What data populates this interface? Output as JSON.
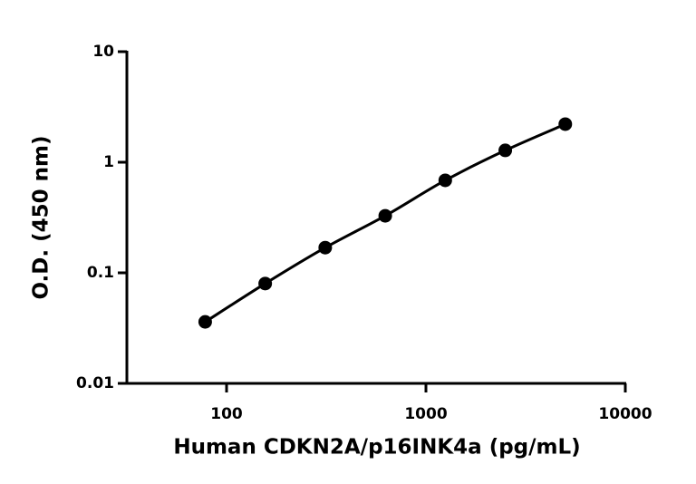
{
  "chart_data": {
    "type": "scatter",
    "log_x": true,
    "log_y": true,
    "x_label": "Human CDKN2A/p16INK4a (pg/mL)",
    "y_label": "O.D. (450 nm)",
    "x": [
      78.125,
      156.25,
      312.5,
      625,
      1250,
      2500,
      5000
    ],
    "values": [
      0.036,
      0.08,
      0.169,
      0.328,
      0.686,
      1.28,
      2.21
    ],
    "color": "#000000",
    "xlim": [
      31.62,
      10000
    ],
    "xticks": [
      100,
      1000,
      10000
    ],
    "ylim": [
      0.01,
      10
    ],
    "yticks": [
      0.01,
      0.1,
      1,
      10
    ]
  }
}
